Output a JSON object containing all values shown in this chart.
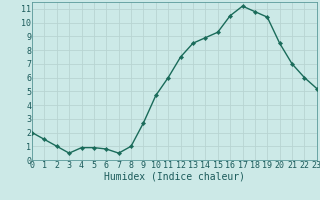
{
  "x": [
    0,
    1,
    2,
    3,
    4,
    5,
    6,
    7,
    8,
    9,
    10,
    11,
    12,
    13,
    14,
    15,
    16,
    17,
    18,
    19,
    20,
    21,
    22,
    23
  ],
  "y": [
    2.0,
    1.5,
    1.0,
    0.5,
    0.9,
    0.9,
    0.8,
    0.5,
    1.0,
    2.7,
    4.7,
    6.0,
    7.5,
    8.5,
    8.9,
    9.3,
    10.5,
    11.2,
    10.8,
    10.4,
    8.5,
    7.0,
    6.0,
    5.2
  ],
  "xlabel": "Humidex (Indice chaleur)",
  "bg_color": "#cce9e7",
  "grid_color": "#b8d4d2",
  "line_color": "#1a6b5a",
  "marker_color": "#1a6b5a",
  "xlim": [
    0,
    23
  ],
  "ylim": [
    0,
    11.5
  ],
  "yticks": [
    0,
    1,
    2,
    3,
    4,
    5,
    6,
    7,
    8,
    9,
    10,
    11
  ],
  "xticks": [
    0,
    1,
    2,
    3,
    4,
    5,
    6,
    7,
    8,
    9,
    10,
    11,
    12,
    13,
    14,
    15,
    16,
    17,
    18,
    19,
    20,
    21,
    22,
    23
  ],
  "xlabel_fontsize": 7,
  "tick_fontsize": 6,
  "font_family": "monospace",
  "line_width": 1.0,
  "marker_size": 2.2
}
